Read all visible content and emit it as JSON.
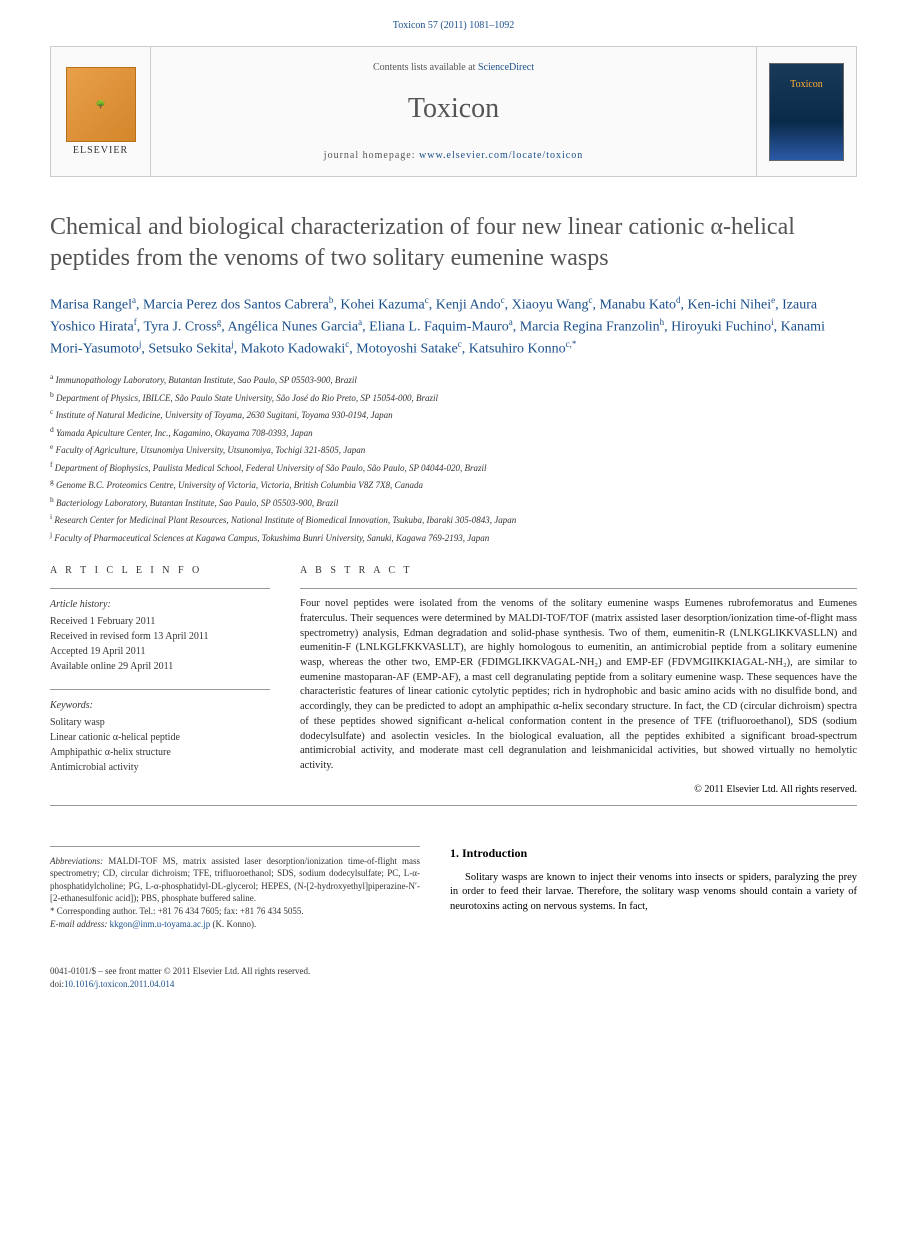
{
  "header": {
    "reference": "Toxicon 57 (2011) 1081–1092",
    "contents_prefix": "Contents lists available at ",
    "contents_link": "ScienceDirect",
    "journal": "Toxicon",
    "homepage_prefix": "journal homepage: ",
    "homepage_url": "www.elsevier.com/locate/toxicon",
    "publisher": "ELSEVIER",
    "cover_text": "Toxicon"
  },
  "title": "Chemical and biological characterization of four new linear cationic α-helical peptides from the venoms of two solitary eumenine wasps",
  "authors_html": "Marisa Rangel<sup>a</sup>, Marcia Perez dos Santos Cabrera<sup>b</sup>, Kohei Kazuma<sup>c</sup>, Kenji Ando<sup>c</sup>, Xiaoyu Wang<sup>c</sup>, Manabu Kato<sup>d</sup>, Ken-ichi Nihei<sup>e</sup>, Izaura Yoshico Hirata<sup>f</sup>, Tyra J. Cross<sup>g</sup>, Angélica Nunes Garcia<sup>a</sup>, Eliana L. Faquim-Mauro<sup>a</sup>, Marcia Regina Franzolin<sup>h</sup>, Hiroyuki Fuchino<sup>i</sup>, Kanami Mori-Yasumoto<sup>j</sup>, Setsuko Sekita<sup>j</sup>, Makoto Kadowaki<sup>c</sup>, Motoyoshi Satake<sup>c</sup>, Katsuhiro Konno<sup>c,*</sup>",
  "affiliations": [
    "a Immunopathology Laboratory, Butantan Institute, Sao Paulo, SP 05503-900, Brazil",
    "b Department of Physics, IBILCE, São Paulo State University, São José do Rio Preto, SP 15054-000, Brazil",
    "c Institute of Natural Medicine, University of Toyama, 2630 Sugitani, Toyama 930-0194, Japan",
    "d Yamada Apiculture Center, Inc., Kagamino, Okayama 708-0393, Japan",
    "e Faculty of Agriculture, Utsunomiya University, Utsunomiya, Tochigi 321-8505, Japan",
    "f Department of Biophysics, Paulista Medical School, Federal University of São Paulo, São Paulo, SP 04044-020, Brazil",
    "g Genome B.C. Proteomics Centre, University of Victoria, Victoria, British Columbia V8Z 7X8, Canada",
    "h Bacteriology Laboratory, Butantan Institute, Sao Paulo, SP 05503-900, Brazil",
    "i Research Center for Medicinal Plant Resources, National Institute of Biomedical Innovation, Tsukuba, Ibaraki 305-0843, Japan",
    "j Faculty of Pharmaceutical Sciences at Kagawa Campus, Tokushima Bunri University, Sanuki, Kagawa 769-2193, Japan"
  ],
  "article_info": {
    "label": "A R T I C L E   I N F O",
    "history_label": "Article history:",
    "history": [
      "Received 1 February 2011",
      "Received in revised form 13 April 2011",
      "Accepted 19 April 2011",
      "Available online 29 April 2011"
    ],
    "keywords_label": "Keywords:",
    "keywords": [
      "Solitary wasp",
      "Linear cationic α-helical peptide",
      "Amphipathic α-helix structure",
      "Antimicrobial activity"
    ]
  },
  "abstract": {
    "label": "A B S T R A C T",
    "text": "Four novel peptides were isolated from the venoms of the solitary eumenine wasps Eumenes rubrofemoratus and Eumenes fraterculus. Their sequences were determined by MALDI-TOF/TOF (matrix assisted laser desorption/ionization time-of-flight mass spectrometry) analysis, Edman degradation and solid-phase synthesis. Two of them, eumenitin-R (LNLKGLIKKVASLLN) and eumenitin-F (LNLKGLFKKVASLLT), are highly homologous to eumenitin, an antimicrobial peptide from a solitary eumenine wasp, whereas the other two, EMP-ER (FDIMGLIKKVAGAL-NH₂) and EMP-EF (FDVMGIIKKIAGAL-NH₂), are similar to eumenine mastoparan-AF (EMP-AF), a mast cell degranulating peptide from a solitary eumenine wasp. These sequences have the characteristic features of linear cationic cytolytic peptides; rich in hydrophobic and basic amino acids with no disulfide bond, and accordingly, they can be predicted to adopt an amphipathic α-helix secondary structure. In fact, the CD (circular dichroism) spectra of these peptides showed significant α-helical conformation content in the presence of TFE (trifluoroethanol), SDS (sodium dodecylsulfate) and asolectin vesicles. In the biological evaluation, all the peptides exhibited a significant broad-spectrum antimicrobial activity, and moderate mast cell degranulation and leishmanicidal activities, but showed virtually no hemolytic activity.",
    "copyright": "© 2011 Elsevier Ltd. All rights reserved."
  },
  "footnotes": {
    "abbrev_label": "Abbreviations:",
    "abbrev_text": " MALDI-TOF MS, matrix assisted laser desorption/ionization time-of-flight mass spectrometry; CD, circular dichroism; TFE, trifluoroethanol; SDS, sodium dodecylsulfate; PC, L-α-phosphatidylcholine; PG, L-α-phosphatidyl-DL-glycerol; HEPES, (N-[2-hydroxyethyl]piperazine-N′-[2-ethanesulfonic acid]); PBS, phosphate buffered saline.",
    "corresponding": "* Corresponding author. Tel.: +81 76 434 7605; fax: +81 76 434 5055.",
    "email_label": "E-mail address: ",
    "email": "kkgon@inm.u-toyama.ac.jp",
    "email_suffix": " (K. Konno)."
  },
  "intro": {
    "heading": "1. Introduction",
    "text": "Solitary wasps are known to inject their venoms into insects or spiders, paralyzing the prey in order to feed their larvae. Therefore, the solitary wasp venoms should contain a variety of neurotoxins acting on nervous systems. In fact,"
  },
  "footer": {
    "issn": "0041-0101/$ – see front matter © 2011 Elsevier Ltd. All rights reserved.",
    "doi_prefix": "doi:",
    "doi": "10.1016/j.toxicon.2011.04.014"
  },
  "colors": {
    "link": "#1a4f8b",
    "title": "#545454",
    "border": "#cccccc"
  }
}
